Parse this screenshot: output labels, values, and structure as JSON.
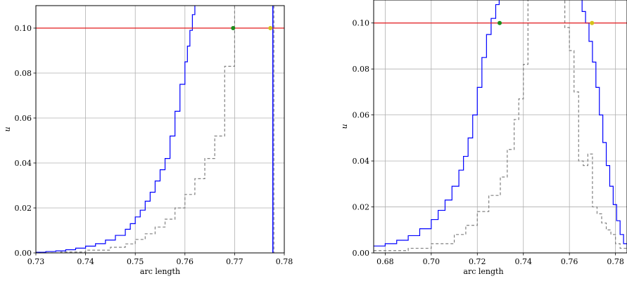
{
  "chart_data": [
    {
      "type": "line",
      "xlabel": "arc length",
      "ylabel": "u",
      "xlim": [
        0.73,
        0.78
      ],
      "ylim": [
        0.0,
        0.11
      ],
      "xticks": [
        0.73,
        0.74,
        0.75,
        0.76,
        0.77,
        0.78
      ],
      "xtick_labels": [
        "0.73",
        "0.74",
        "0.75",
        "0.76",
        "0.77",
        "0.78"
      ],
      "yticks": [
        0.0,
        0.02,
        0.04,
        0.06,
        0.08,
        0.1
      ],
      "ytick_labels": [
        "0.00",
        "0.02",
        "0.04",
        "0.06",
        "0.08",
        "0.10"
      ],
      "grid": true,
      "hline": {
        "y": 0.1,
        "color": "#e41a1c"
      },
      "vlines": [
        {
          "x": 0.7777,
          "color": "#0000ff"
        }
      ],
      "points": [
        {
          "x": 0.7697,
          "y": 0.1,
          "color": "#1a8c1a"
        },
        {
          "x": 0.7772,
          "y": 0.1,
          "color": "#d4c21a"
        }
      ],
      "series": [
        {
          "style": "solid",
          "color": "#0000ff",
          "x": [
            0.73,
            0.732,
            0.734,
            0.736,
            0.738,
            0.74,
            0.742,
            0.744,
            0.746,
            0.748,
            0.749,
            0.75,
            0.751,
            0.752,
            0.753,
            0.754,
            0.755,
            0.756,
            0.757,
            0.758,
            0.759,
            0.76,
            0.7605,
            0.761,
            0.7615,
            0.762
          ],
          "y": [
            0.0003,
            0.0006,
            0.0009,
            0.0014,
            0.0021,
            0.003,
            0.0041,
            0.0057,
            0.0078,
            0.0105,
            0.013,
            0.016,
            0.019,
            0.023,
            0.027,
            0.032,
            0.037,
            0.042,
            0.052,
            0.063,
            0.075,
            0.085,
            0.092,
            0.099,
            0.106,
            0.112
          ]
        },
        {
          "style": "dashed",
          "color": "#808080",
          "x": [
            0.73,
            0.735,
            0.74,
            0.745,
            0.748,
            0.75,
            0.752,
            0.754,
            0.756,
            0.758,
            0.76,
            0.762,
            0.764,
            0.766,
            0.768,
            0.77
          ],
          "y": [
            0.0,
            0.0004,
            0.0012,
            0.0025,
            0.004,
            0.006,
            0.0085,
            0.0115,
            0.015,
            0.02,
            0.026,
            0.033,
            0.042,
            0.052,
            0.083,
            0.11
          ]
        }
      ]
    },
    {
      "type": "line",
      "xlabel": "arc length",
      "ylabel": "u",
      "xlim": [
        0.675,
        0.785
      ],
      "ylim": [
        0.0,
        0.11
      ],
      "xticks": [
        0.68,
        0.7,
        0.72,
        0.74,
        0.76,
        0.78
      ],
      "xtick_labels": [
        "0.68",
        "0.70",
        "0.72",
        "0.74",
        "0.76",
        "0.78"
      ],
      "yticks": [
        0.0,
        0.02,
        0.04,
        0.06,
        0.08,
        0.1
      ],
      "ytick_labels": [
        "0.00",
        "0.02",
        "0.04",
        "0.06",
        "0.08",
        "0.10"
      ],
      "grid": true,
      "hline": {
        "y": 0.1,
        "color": "#e41a1c"
      },
      "points": [
        {
          "x": 0.7297,
          "y": 0.1,
          "color": "#1a8c1a"
        },
        {
          "x": 0.7698,
          "y": 0.1,
          "color": "#d4c21a"
        }
      ],
      "series": [
        {
          "style": "solid",
          "color": "#0000ff",
          "x": [
            0.675,
            0.68,
            0.685,
            0.69,
            0.695,
            0.7,
            0.703,
            0.706,
            0.709,
            0.712,
            0.714,
            0.716,
            0.718,
            0.72,
            0.722,
            0.724,
            0.726,
            0.728,
            0.7295
          ],
          "y": [
            0.003,
            0.004,
            0.0055,
            0.0075,
            0.0105,
            0.0145,
            0.0185,
            0.023,
            0.029,
            0.036,
            0.042,
            0.05,
            0.06,
            0.072,
            0.085,
            0.095,
            0.102,
            0.108,
            0.112
          ]
        },
        {
          "style": "solid",
          "color": "#0000ff",
          "x": [
            0.764,
            0.7655,
            0.767,
            0.7685,
            0.77,
            0.7715,
            0.773,
            0.7745,
            0.776,
            0.7775,
            0.779,
            0.7805,
            0.782,
            0.7835,
            0.785
          ],
          "y": [
            0.112,
            0.105,
            0.1,
            0.092,
            0.083,
            0.072,
            0.06,
            0.048,
            0.038,
            0.029,
            0.021,
            0.014,
            0.008,
            0.004,
            0.002
          ]
        },
        {
          "style": "dashed",
          "color": "#808080",
          "x": [
            0.675,
            0.69,
            0.7,
            0.71,
            0.715,
            0.72,
            0.725,
            0.73,
            0.733,
            0.736,
            0.738,
            0.74,
            0.742
          ],
          "y": [
            0.001,
            0.002,
            0.004,
            0.008,
            0.012,
            0.018,
            0.025,
            0.033,
            0.045,
            0.058,
            0.067,
            0.082,
            0.112
          ]
        },
        {
          "style": "dashed",
          "color": "#808080",
          "x": [
            0.756,
            0.758,
            0.76,
            0.762,
            0.764,
            0.766,
            0.768,
            0.77,
            0.772,
            0.774,
            0.776,
            0.778,
            0.78,
            0.782,
            0.785
          ],
          "y": [
            0.112,
            0.098,
            0.088,
            0.07,
            0.04,
            0.038,
            0.043,
            0.02,
            0.017,
            0.013,
            0.01,
            0.008,
            0.004,
            0.002,
            0.001
          ]
        }
      ]
    }
  ]
}
